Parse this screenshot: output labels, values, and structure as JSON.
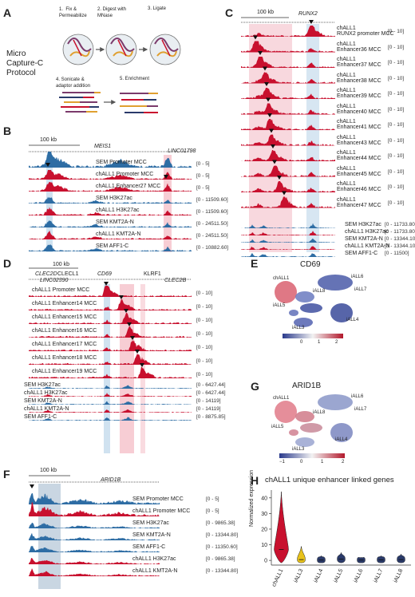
{
  "panels": {
    "A": {
      "letter": "A",
      "protocol_title": "Micro\nCapture-C\nProtocol",
      "steps": [
        "1.  Fix &\nPermeabilize",
        "2. Digest with\nMNase",
        "3. Ligate",
        "4. Sonicate &\nadaptor addition",
        "5. Enrichment"
      ]
    },
    "B": {
      "letter": "B",
      "scale": "100 kb",
      "genes": [
        "MEIS1",
        "LINC01798"
      ],
      "tracks": [
        {
          "label": "SEM Promoter MCC",
          "range": "[0 - 5]",
          "color": "#2e6da4"
        },
        {
          "label": "chALL1 Promoter MCC",
          "range": "[0 - 5]",
          "color": "#c8102e"
        },
        {
          "label": "chALL1 Enhancer27 MCC",
          "range": "[0 - 5]",
          "color": "#c8102e"
        },
        {
          "label": "SEM H3K27ac",
          "range": "[0 - 11509.60]",
          "color": "#2e6da4"
        },
        {
          "label": "chALL1 H3K27ac",
          "range": "[0 - 11509.60]",
          "color": "#c8102e"
        },
        {
          "label": "SEM KMT2A-N",
          "range": "[0 - 24511.50]",
          "color": "#2e6da4"
        },
        {
          "label": "chALL1 KMT2A-N",
          "range": "[0 - 24511.50]",
          "color": "#c8102e"
        },
        {
          "label": "SEM AFF1-C",
          "range": "[0 - 10882.60]",
          "color": "#2e6da4"
        }
      ]
    },
    "C": {
      "letter": "C",
      "scale": "100 kb",
      "genes": [
        "RUNX2"
      ],
      "tracks": [
        {
          "label": "chALL1\nRUNX2 promoter MCC",
          "range": "[0 - 10]"
        },
        {
          "label": "chALL1\nEnhancer36 MCC",
          "range": "[0 - 10]"
        },
        {
          "label": "chALL1\nEnhancer37 MCC",
          "range": "[0 - 10]"
        },
        {
          "label": "chALL1\nEnhancer38 MCC",
          "range": "[0 - 10]"
        },
        {
          "label": "chALL1\nEnhancer39 MCC",
          "range": "[0 - 10]"
        },
        {
          "label": "chALL1\nEnhancer40 MCC",
          "range": "[0 - 10]"
        },
        {
          "label": "chALL1\nEnhancer41 MCC",
          "range": "[0 - 10]"
        },
        {
          "label": "chALL1\nEnhancer43 MCC",
          "range": "[0 - 10]"
        },
        {
          "label": "chALL1\nEnhancer44 MCC",
          "range": "[0 - 10]"
        },
        {
          "label": "chALL1\nEnhancer45 MCC",
          "range": "[0 - 10]"
        },
        {
          "label": "chALL1\nEnhancer46 MCC",
          "range": "[0 - 10]"
        },
        {
          "label": "chALL1\nEnhancer47 MCC",
          "range": "[0 - 10]"
        }
      ],
      "chip_tracks": [
        {
          "label": "SEM H3K27ac",
          "range": "[0 - 11733.80]",
          "color": "#2e6da4"
        },
        {
          "label": "chALL1 H3K27ac",
          "range": "[0 - 11733.80]",
          "color": "#c8102e"
        },
        {
          "label": "SEM KMT2A-N",
          "range": "[0 - 13344.10]",
          "color": "#2e6da4"
        },
        {
          "label": "chALL1 KMT2A-N",
          "range": "[0 - 13344.10]",
          "color": "#c8102e"
        },
        {
          "label": "SEM AFF1-C",
          "range": "[0 - 11500]",
          "color": "#2e6da4"
        }
      ]
    },
    "D": {
      "letter": "D",
      "scale": "100 kb",
      "genes": [
        "CLEC2D",
        "CLECL1",
        "LINC02390",
        "CD69",
        "KLRF1",
        "CLEC2B"
      ],
      "tracks": [
        {
          "label": "chALL1 Promoter MCC",
          "range": "[0 - 10]",
          "color": "#c8102e"
        },
        {
          "label": "chALL1 Enhancer14 MCC",
          "range": "[0 - 10]",
          "color": "#c8102e"
        },
        {
          "label": "chALL1 Enhancer15 MCC",
          "range": "[0 - 10]",
          "color": "#c8102e"
        },
        {
          "label": "chALL1 Enhancer16 MCC",
          "range": "[0 - 10]",
          "color": "#c8102e"
        },
        {
          "label": "chALL1 Enhancer17 MCC",
          "range": "[0 - 10]",
          "color": "#c8102e"
        },
        {
          "label": "chALL1 Enhancer18 MCC",
          "range": "[0 - 10]",
          "color": "#c8102e"
        },
        {
          "label": "chALL1 Enhancer19 MCC",
          "range": "[0 - 10]",
          "color": "#c8102e"
        },
        {
          "label": "SEM H3K27ac",
          "range": "[0 - 6427.44]",
          "color": "#2e6da4"
        },
        {
          "label": "chALL1 H3K27ac",
          "range": "[0 - 6427.44]",
          "color": "#c8102e"
        },
        {
          "label": "SEM KMT2A-N",
          "range": "[0 - 14119]",
          "color": "#2e6da4"
        },
        {
          "label": "chALL1 KMT2A-N",
          "range": "[0 - 14119]",
          "color": "#c8102e"
        },
        {
          "label": "SEM AFF1-C",
          "range": "[0 - 8875.85]",
          "color": "#2e6da4"
        }
      ]
    },
    "E": {
      "letter": "E",
      "title": "CD69",
      "clusters": [
        "chALL1",
        "iALL6",
        "iALL7",
        "iALL8",
        "iALL5",
        "iALL4",
        "iALL3"
      ],
      "ticks": [
        "0",
        "1",
        "2"
      ]
    },
    "F": {
      "letter": "F",
      "scale": "100 kb",
      "genes": [
        "ARID1B"
      ],
      "tracks": [
        {
          "label": "SEM Promoter MCC",
          "range": "[0 - 5]",
          "color": "#2e6da4"
        },
        {
          "label": "chALL1 Promoter MCC",
          "range": "[0 - 5]",
          "color": "#c8102e"
        },
        {
          "label": "SEM H3K27ac",
          "range": "[0 - 9865.38]",
          "color": "#2e6da4"
        },
        {
          "label": "SEM KMT2A-N",
          "range": "[0 - 13344.80]",
          "color": "#2e6da4"
        },
        {
          "label": "SEM AFF1-C",
          "range": "[0 - 11350.60]",
          "color": "#2e6da4"
        },
        {
          "label": "chALL1 H3K27ac",
          "range": "[0 - 9865.38]",
          "color": "#c8102e"
        },
        {
          "label": "chALL1 KMT2A-N",
          "range": "[0 - 13344.80]",
          "color": "#c8102e"
        }
      ]
    },
    "G": {
      "letter": "G",
      "title": "ARID1B",
      "clusters": [
        "chALL1",
        "iALL6",
        "iALL7",
        "iALL8",
        "iALL5",
        "iALL4",
        "iALL3"
      ],
      "ticks": [
        "−1",
        "0",
        "1",
        "2"
      ]
    },
    "H": {
      "letter": "H"
    }
  },
  "chart_data": {
    "type": "violin",
    "title": "chALL1 unique enhancer linked genes",
    "ylabel": "Normalized expression",
    "ylim": [
      -3,
      45
    ],
    "yticks": [
      0,
      10,
      20,
      30,
      40
    ],
    "categories": [
      "chALL1",
      "iALL3",
      "iALL4",
      "iALL5",
      "iALL6",
      "iALL7",
      "iALL8"
    ],
    "median": [
      7,
      0.5,
      0.2,
      0.8,
      0.2,
      0.3,
      0.5
    ],
    "max": [
      44,
      9,
      3,
      5,
      2,
      3,
      4
    ],
    "colors": [
      "#c8102e",
      "#e8c21a",
      "#2a3a6a",
      "#2a3a6a",
      "#2a3a6a",
      "#2a3a6a",
      "#2a3a6a"
    ]
  }
}
